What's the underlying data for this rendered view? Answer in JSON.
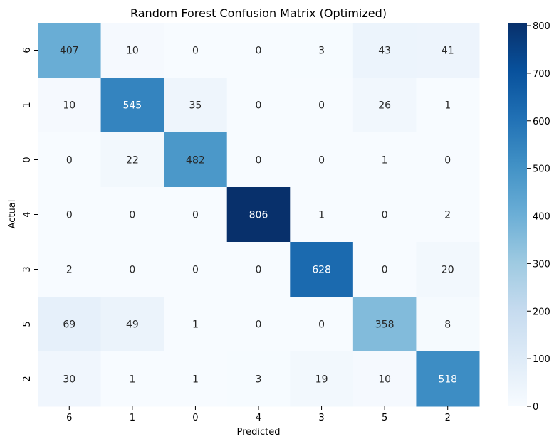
{
  "chart_data": {
    "type": "heatmap",
    "title": "Random Forest Confusion Matrix (Optimized)",
    "xlabel": "Predicted",
    "ylabel": "Actual",
    "x_categories": [
      "6",
      "1",
      "0",
      "4",
      "3",
      "5",
      "2"
    ],
    "y_categories": [
      "6",
      "1",
      "0",
      "4",
      "3",
      "5",
      "2"
    ],
    "values": [
      [
        407,
        10,
        0,
        0,
        3,
        43,
        41
      ],
      [
        10,
        545,
        35,
        0,
        0,
        26,
        1
      ],
      [
        0,
        22,
        482,
        0,
        0,
        1,
        0
      ],
      [
        0,
        0,
        0,
        806,
        1,
        0,
        2
      ],
      [
        2,
        0,
        0,
        0,
        628,
        0,
        20
      ],
      [
        69,
        49,
        1,
        0,
        0,
        358,
        8
      ],
      [
        30,
        1,
        1,
        3,
        19,
        10,
        518
      ]
    ],
    "colormap": "Blues",
    "colorbar": {
      "range": [
        0,
        806
      ],
      "ticks": [
        "0",
        "100",
        "200",
        "300",
        "400",
        "500",
        "600",
        "700",
        "800"
      ]
    },
    "grid": false
  }
}
